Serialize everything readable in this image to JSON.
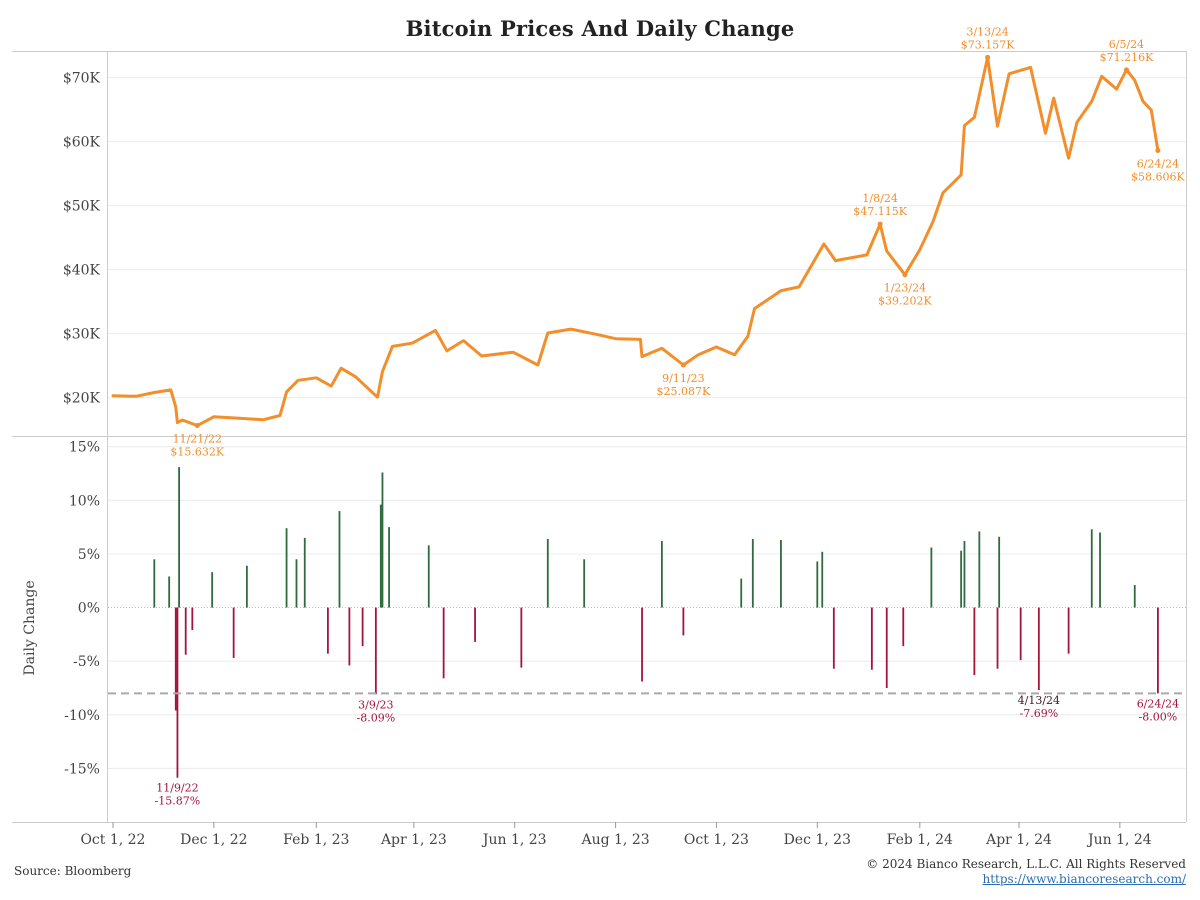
{
  "title": "Bitcoin Prices And Daily Change",
  "footer": {
    "source": "Source: Bloomberg",
    "copyright": "© 2024 Bianco Research, L.L.C. All Rights Reserved",
    "link": "https://www.biancoresearch.com/"
  },
  "colors": {
    "price": "#f28e2b",
    "up": "#2e6b3e",
    "down": "#a3143f",
    "grid": "#ececec",
    "border": "#cccccc"
  },
  "chart_data": [
    {
      "type": "line",
      "series": [
        {
          "name": "",
          "points": [
            [
              "2022-10-01",
              20300
            ],
            [
              "2022-10-15",
              20200
            ],
            [
              "2022-10-26",
              20800
            ],
            [
              "2022-11-05",
              21200
            ],
            [
              "2022-11-08",
              18500
            ],
            [
              "2022-11-09",
              16100
            ],
            [
              "2022-11-12",
              16500
            ],
            [
              "2022-11-21",
              15632
            ],
            [
              "2022-12-01",
              17000
            ],
            [
              "2022-12-15",
              16800
            ],
            [
              "2022-12-31",
              16550
            ],
            [
              "2023-01-10",
              17200
            ],
            [
              "2023-01-14",
              20900
            ],
            [
              "2023-01-21",
              22700
            ],
            [
              "2023-02-01",
              23100
            ],
            [
              "2023-02-10",
              21800
            ],
            [
              "2023-02-16",
              24600
            ],
            [
              "2023-02-25",
              23200
            ],
            [
              "2023-03-09",
              20300
            ],
            [
              "2023-03-10",
              20100
            ],
            [
              "2023-03-13",
              24100
            ],
            [
              "2023-03-19",
              28000
            ],
            [
              "2023-03-31",
              28500
            ],
            [
              "2023-04-14",
              30500
            ],
            [
              "2023-04-21",
              27300
            ],
            [
              "2023-05-01",
              28900
            ],
            [
              "2023-05-12",
              26500
            ],
            [
              "2023-05-31",
              27100
            ],
            [
              "2023-06-15",
              25100
            ],
            [
              "2023-06-21",
              30100
            ],
            [
              "2023-07-05",
              30700
            ],
            [
              "2023-07-20",
              29900
            ],
            [
              "2023-08-01",
              29200
            ],
            [
              "2023-08-16",
              29100
            ],
            [
              "2023-08-17",
              26400
            ],
            [
              "2023-08-29",
              27700
            ],
            [
              "2023-09-11",
              25087
            ],
            [
              "2023-09-20",
              26700
            ],
            [
              "2023-10-01",
              27900
            ],
            [
              "2023-10-12",
              26700
            ],
            [
              "2023-10-20",
              29600
            ],
            [
              "2023-10-24",
              33900
            ],
            [
              "2023-11-09",
              36700
            ],
            [
              "2023-11-20",
              37300
            ],
            [
              "2023-12-05",
              44000
            ],
            [
              "2023-12-12",
              41400
            ],
            [
              "2023-12-31",
              42300
            ],
            [
              "2024-01-08",
              47115
            ],
            [
              "2024-01-12",
              42900
            ],
            [
              "2024-01-23",
              39202
            ],
            [
              "2024-02-01",
              43100
            ],
            [
              "2024-02-09",
              47500
            ],
            [
              "2024-02-15",
              52000
            ],
            [
              "2024-02-26",
              54800
            ],
            [
              "2024-02-28",
              62500
            ],
            [
              "2024-03-05",
              63800
            ],
            [
              "2024-03-13",
              73157
            ],
            [
              "2024-03-19",
              62400
            ],
            [
              "2024-03-26",
              70600
            ],
            [
              "2024-04-08",
              71600
            ],
            [
              "2024-04-17",
              61300
            ],
            [
              "2024-04-22",
              66800
            ],
            [
              "2024-05-01",
              57400
            ],
            [
              "2024-05-06",
              63000
            ],
            [
              "2024-05-15",
              66300
            ],
            [
              "2024-05-21",
              70200
            ],
            [
              "2024-05-30",
              68200
            ],
            [
              "2024-06-05",
              71216
            ],
            [
              "2024-06-10",
              69600
            ],
            [
              "2024-06-15",
              66300
            ],
            [
              "2024-06-20",
              64900
            ],
            [
              "2024-06-24",
              58606
            ]
          ]
        }
      ],
      "ylim": [
        14000,
        74000
      ],
      "yticks": [
        20000,
        30000,
        40000,
        50000,
        60000,
        70000
      ],
      "ytick_labels": [
        "$20K",
        "$30K",
        "$40K",
        "$50K",
        "$60K",
        "$70K"
      ],
      "annotations": [
        {
          "date": "2022-11-21",
          "value": 15632,
          "label1": "11/21/22",
          "label2": "$15.632K",
          "pos": "below"
        },
        {
          "date": "2023-09-11",
          "value": 25087,
          "label1": "9/11/23",
          "label2": "$25.087K",
          "pos": "below"
        },
        {
          "date": "2024-01-08",
          "value": 47115,
          "label1": "1/8/24",
          "label2": "$47.115K",
          "pos": "above"
        },
        {
          "date": "2024-01-23",
          "value": 39202,
          "label1": "1/23/24",
          "label2": "$39.202K",
          "pos": "below"
        },
        {
          "date": "2024-03-13",
          "value": 73157,
          "label1": "3/13/24",
          "label2": "$73.157K",
          "pos": "above"
        },
        {
          "date": "2024-06-05",
          "value": 71216,
          "label1": "6/5/24",
          "label2": "$71.216K",
          "pos": "above"
        },
        {
          "date": "2024-06-24",
          "value": 58606,
          "label1": "6/24/24",
          "label2": "$58.606K",
          "pos": "below"
        }
      ]
    },
    {
      "type": "bar",
      "ylabel": "Daily Change",
      "ylim": [
        -20,
        16
      ],
      "yticks": [
        -15,
        -10,
        -5,
        0,
        5,
        10,
        15
      ],
      "ytick_labels": [
        "-15%",
        "-10%",
        "-5%",
        "0%",
        "5%",
        "10%",
        "15%"
      ],
      "threshold": -8.0,
      "bars": [
        [
          "2022-11-08",
          -9.6
        ],
        [
          "2022-11-09",
          -15.87
        ],
        [
          "2022-11-10",
          13.1
        ],
        [
          "2022-10-26",
          4.5
        ],
        [
          "2022-11-04",
          2.9
        ],
        [
          "2022-11-14",
          -4.4
        ],
        [
          "2022-11-18",
          -2.1
        ],
        [
          "2022-11-30",
          3.3
        ],
        [
          "2022-12-13",
          -4.7
        ],
        [
          "2022-12-21",
          3.9
        ],
        [
          "2023-01-14",
          7.4
        ],
        [
          "2023-01-20",
          4.5
        ],
        [
          "2023-01-25",
          6.5
        ],
        [
          "2023-02-08",
          -4.3
        ],
        [
          "2023-02-15",
          9.0
        ],
        [
          "2023-02-21",
          -5.4
        ],
        [
          "2023-03-01",
          -3.6
        ],
        [
          "2023-03-09",
          -8.09
        ],
        [
          "2023-03-12",
          9.6
        ],
        [
          "2023-03-13",
          12.6
        ],
        [
          "2023-03-17",
          7.5
        ],
        [
          "2023-04-10",
          5.8
        ],
        [
          "2023-04-19",
          -6.6
        ],
        [
          "2023-05-08",
          -3.2
        ],
        [
          "2023-06-05",
          -5.6
        ],
        [
          "2023-06-21",
          6.4
        ],
        [
          "2023-07-13",
          4.5
        ],
        [
          "2023-08-17",
          -6.9
        ],
        [
          "2023-08-29",
          6.2
        ],
        [
          "2023-09-11",
          -2.6
        ],
        [
          "2023-10-16",
          2.7
        ],
        [
          "2023-10-23",
          6.4
        ],
        [
          "2023-11-09",
          6.3
        ],
        [
          "2023-12-01",
          4.3
        ],
        [
          "2023-12-04",
          5.2
        ],
        [
          "2023-12-11",
          -5.7
        ],
        [
          "2024-01-03",
          -5.8
        ],
        [
          "2024-01-12",
          -7.5
        ],
        [
          "2024-01-22",
          -3.6
        ],
        [
          "2024-02-08",
          5.6
        ],
        [
          "2024-02-26",
          5.3
        ],
        [
          "2024-02-28",
          6.2
        ],
        [
          "2024-03-05",
          -6.3
        ],
        [
          "2024-03-08",
          7.1
        ],
        [
          "2024-03-19",
          -5.7
        ],
        [
          "2024-03-20",
          6.6
        ],
        [
          "2024-04-02",
          -4.9
        ],
        [
          "2024-04-13",
          -7.69
        ],
        [
          "2024-05-01",
          -4.3
        ],
        [
          "2024-05-15",
          7.3
        ],
        [
          "2024-05-20",
          7.0
        ],
        [
          "2024-06-10",
          2.1
        ],
        [
          "2024-06-24",
          -8.0
        ]
      ],
      "annotations": [
        {
          "date": "2022-11-09",
          "value": -15.87,
          "label1": "11/9/22",
          "label2": "-15.87%",
          "color": "down"
        },
        {
          "date": "2023-03-09",
          "value": -8.09,
          "label1": "3/9/23",
          "label2": "-8.09%",
          "color": "down"
        },
        {
          "date": "2024-04-13",
          "value": -7.69,
          "label1": "4/13/24",
          "label2": "-7.69%",
          "color": "dark"
        },
        {
          "date": "2024-06-24",
          "value": -8.0,
          "label1": "6/24/24",
          "label2": "-8.00%",
          "color": "down"
        }
      ]
    }
  ],
  "x_axis": {
    "range": [
      "2022-09-28",
      "2024-07-11"
    ],
    "ticks": [
      {
        "date": "2022-10-01",
        "label": "Oct 1, 22"
      },
      {
        "date": "2022-12-01",
        "label": "Dec 1, 22"
      },
      {
        "date": "2023-02-01",
        "label": "Feb 1, 23"
      },
      {
        "date": "2023-04-01",
        "label": "Apr 1, 23"
      },
      {
        "date": "2023-06-01",
        "label": "Jun 1, 23"
      },
      {
        "date": "2023-08-01",
        "label": "Aug 1, 23"
      },
      {
        "date": "2023-10-01",
        "label": "Oct 1, 23"
      },
      {
        "date": "2023-12-01",
        "label": "Dec 1, 23"
      },
      {
        "date": "2024-02-01",
        "label": "Feb 1, 24"
      },
      {
        "date": "2024-04-01",
        "label": "Apr 1, 24"
      },
      {
        "date": "2024-06-01",
        "label": "Jun 1, 24"
      }
    ]
  }
}
